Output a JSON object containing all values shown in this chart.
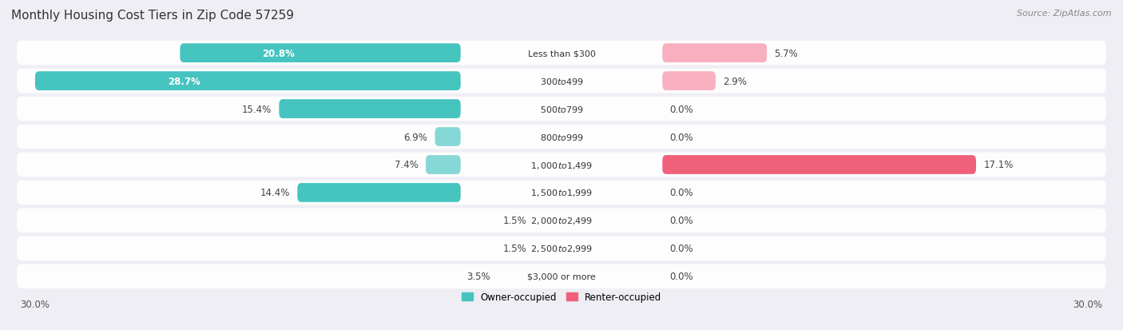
{
  "title": "Monthly Housing Cost Tiers in Zip Code 57259",
  "source": "Source: ZipAtlas.com",
  "categories": [
    "Less than $300",
    "$300 to $499",
    "$500 to $799",
    "$800 to $999",
    "$1,000 to $1,499",
    "$1,500 to $1,999",
    "$2,000 to $2,499",
    "$2,500 to $2,999",
    "$3,000 or more"
  ],
  "owner_values": [
    20.8,
    28.7,
    15.4,
    6.9,
    7.4,
    14.4,
    1.5,
    1.5,
    3.5
  ],
  "renter_values": [
    5.7,
    2.9,
    0.0,
    0.0,
    17.1,
    0.0,
    0.0,
    0.0,
    0.0
  ],
  "owner_color_main": "#45c4c0",
  "owner_color_light": "#85d8d5",
  "renter_color_main": "#f0607a",
  "renter_color_light": "#f8b0c0",
  "owner_label": "Owner-occupied",
  "renter_label": "Renter-occupied",
  "xlim": 30.0,
  "axis_label_left": "30.0%",
  "axis_label_right": "30.0%",
  "bg_color": "#eeeef4",
  "title_fontsize": 11,
  "source_fontsize": 8,
  "bar_height": 0.68,
  "label_fontsize": 8.5
}
